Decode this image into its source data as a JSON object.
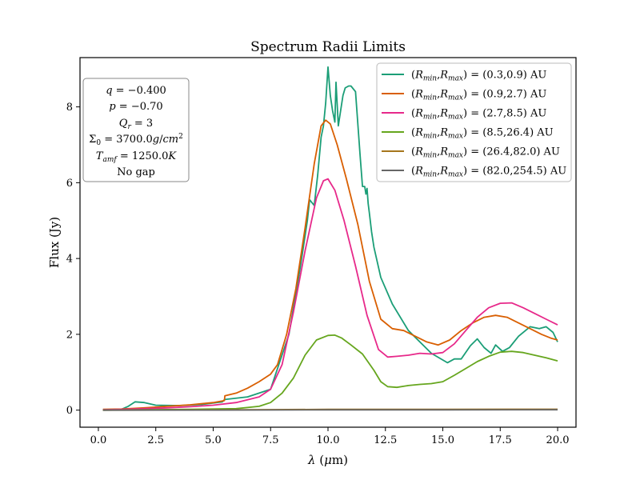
{
  "chart_data": {
    "type": "line",
    "title": "Spectrum Radii Limits",
    "xlabel": "λ (μm)",
    "ylabel": "Flux (Jy)",
    "xlim": [
      -0.8,
      20.8
    ],
    "ylim": [
      -0.45,
      9.3
    ],
    "xticks": [
      0.0,
      2.5,
      5.0,
      7.5,
      10.0,
      12.5,
      15.0,
      17.5,
      20.0
    ],
    "xtick_labels": [
      "0.0",
      "2.5",
      "5.0",
      "7.5",
      "10.0",
      "12.5",
      "15.0",
      "17.5",
      "20.0"
    ],
    "yticks": [
      0,
      2,
      4,
      6,
      8
    ],
    "ytick_labels": [
      "0",
      "2",
      "4",
      "6",
      "8"
    ],
    "grid": false,
    "legend_position": "top-right",
    "params_box": {
      "lines": [
        "q = −0.400",
        "p = −0.70",
        "Q_r = 3",
        "Σ_0 = 3700.0g/cm^2",
        "T_amf = 1250.0K",
        "No gap"
      ]
    },
    "series": [
      {
        "name": "(R_min,R_max) = (0.3,0.9) AU",
        "color": "#1b9e77",
        "x": [
          0.2,
          1.0,
          1.3,
          1.6,
          2.0,
          2.5,
          3.5,
          4.5,
          5.4,
          5.5,
          6.5,
          7.5,
          8.3,
          8.8,
          9.1,
          9.2,
          9.4,
          9.55,
          9.7,
          9.8,
          9.9,
          10.0,
          10.1,
          10.2,
          10.3,
          10.35,
          10.45,
          10.55,
          10.65,
          10.75,
          10.9,
          11.0,
          11.2,
          11.4,
          11.5,
          11.6,
          11.65,
          11.7,
          11.75,
          11.8,
          11.9,
          12.0,
          12.3,
          12.8,
          13.5,
          14.5,
          15.2,
          15.5,
          15.8,
          16.2,
          16.5,
          16.8,
          17.1,
          17.3,
          17.6,
          17.9,
          18.3,
          18.8,
          19.2,
          19.5,
          19.8,
          20.0
        ],
        "y": [
          0.01,
          0.02,
          0.1,
          0.22,
          0.2,
          0.13,
          0.12,
          0.15,
          0.22,
          0.28,
          0.35,
          0.55,
          2.0,
          3.8,
          5.0,
          5.55,
          5.4,
          6.2,
          7.2,
          7.5,
          8.1,
          9.05,
          8.3,
          7.9,
          7.6,
          8.65,
          7.5,
          7.9,
          8.3,
          8.5,
          8.55,
          8.55,
          8.4,
          6.7,
          5.9,
          5.9,
          5.7,
          5.85,
          5.45,
          5.2,
          4.7,
          4.3,
          3.5,
          2.8,
          2.1,
          1.5,
          1.25,
          1.35,
          1.35,
          1.7,
          1.88,
          1.65,
          1.5,
          1.72,
          1.55,
          1.65,
          1.95,
          2.2,
          2.15,
          2.2,
          2.05,
          1.8
        ]
      },
      {
        "name": "(R_min,R_max) = (0.9,2.7) AU",
        "color": "#d95f02",
        "x": [
          0.2,
          1.0,
          2.0,
          3.0,
          4.0,
          5.0,
          5.49,
          5.51,
          6.0,
          6.5,
          7.0,
          7.5,
          7.8,
          8.2,
          8.6,
          9.0,
          9.4,
          9.7,
          9.9,
          10.1,
          10.4,
          10.8,
          11.3,
          11.8,
          12.3,
          12.8,
          13.3,
          13.8,
          14.3,
          14.8,
          15.3,
          15.8,
          16.3,
          16.8,
          17.3,
          17.8,
          18.3,
          18.8,
          19.3,
          19.7,
          20.0
        ],
        "y": [
          0.02,
          0.03,
          0.06,
          0.1,
          0.14,
          0.2,
          0.25,
          0.38,
          0.45,
          0.58,
          0.75,
          0.95,
          1.2,
          2.0,
          3.2,
          4.8,
          6.5,
          7.5,
          7.65,
          7.55,
          7.0,
          6.1,
          4.9,
          3.4,
          2.4,
          2.15,
          2.1,
          1.95,
          1.8,
          1.72,
          1.85,
          2.1,
          2.3,
          2.45,
          2.5,
          2.45,
          2.3,
          2.15,
          2.0,
          1.9,
          1.85
        ]
      },
      {
        "name": "(R_min,R_max) = (2.7,8.5) AU",
        "color": "#e7298a",
        "x": [
          0.2,
          1.0,
          2.0,
          3.0,
          4.0,
          5.0,
          6.0,
          7.0,
          7.5,
          8.0,
          8.5,
          9.0,
          9.5,
          9.8,
          10.0,
          10.3,
          10.7,
          11.2,
          11.7,
          12.2,
          12.6,
          13.0,
          13.5,
          14.0,
          14.5,
          15.0,
          15.5,
          16.0,
          16.5,
          17.0,
          17.5,
          18.0,
          18.5,
          19.0,
          19.5,
          20.0
        ],
        "y": [
          0.01,
          0.02,
          0.04,
          0.06,
          0.09,
          0.13,
          0.2,
          0.35,
          0.55,
          1.2,
          2.6,
          4.2,
          5.6,
          6.05,
          6.1,
          5.8,
          5.0,
          3.8,
          2.5,
          1.6,
          1.4,
          1.42,
          1.45,
          1.5,
          1.48,
          1.52,
          1.75,
          2.1,
          2.45,
          2.7,
          2.82,
          2.83,
          2.7,
          2.55,
          2.4,
          2.25
        ]
      },
      {
        "name": "(R_min,R_max) = (8.5,26.4) AU",
        "color": "#66a61e",
        "x": [
          0.2,
          2.0,
          4.0,
          6.0,
          7.0,
          7.5,
          8.0,
          8.5,
          9.0,
          9.5,
          10.0,
          10.3,
          10.6,
          11.0,
          11.5,
          12.0,
          12.3,
          12.6,
          13.0,
          13.5,
          14.0,
          14.5,
          15.0,
          15.5,
          16.0,
          16.5,
          17.0,
          17.5,
          18.0,
          18.5,
          19.0,
          19.5,
          20.0
        ],
        "y": [
          0.0,
          0.01,
          0.02,
          0.04,
          0.1,
          0.2,
          0.45,
          0.85,
          1.45,
          1.85,
          1.97,
          1.98,
          1.9,
          1.72,
          1.48,
          1.05,
          0.75,
          0.62,
          0.6,
          0.65,
          0.68,
          0.7,
          0.75,
          0.92,
          1.1,
          1.28,
          1.42,
          1.53,
          1.55,
          1.52,
          1.45,
          1.38,
          1.3
        ]
      },
      {
        "name": "(R_min,R_max) = (26.4,82.0) AU",
        "color": "#a6761d",
        "x": [
          0.2,
          5.0,
          10.0,
          15.0,
          20.0
        ],
        "y": [
          0.0,
          0.005,
          0.02,
          0.02,
          0.025
        ]
      },
      {
        "name": "(R_min,R_max) = (82.0,254.5) AU",
        "color": "#666666",
        "x": [
          0.2,
          5.0,
          10.0,
          15.0,
          20.0
        ],
        "y": [
          0.0,
          0.002,
          0.008,
          0.008,
          0.01
        ]
      }
    ]
  }
}
